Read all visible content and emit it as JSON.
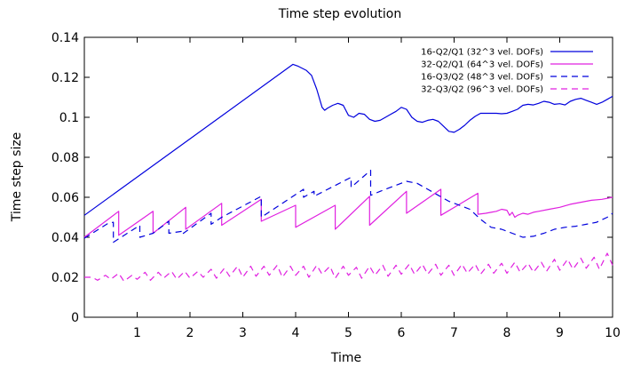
{
  "chart_data": {
    "type": "line",
    "title": "Time step evolution",
    "xlabel": "Time",
    "ylabel": "Time step size",
    "xlim": [
      0,
      10
    ],
    "ylim": [
      0,
      0.14
    ],
    "xticks": [
      1,
      2,
      3,
      4,
      5,
      6,
      7,
      8,
      9,
      10
    ],
    "xtick_labels": [
      "1",
      "2",
      "3",
      "4",
      "5",
      "6",
      "7",
      "8",
      "9",
      "10"
    ],
    "yticks": [
      0,
      0.02,
      0.04,
      0.06,
      0.08,
      0.1,
      0.12,
      0.14
    ],
    "ytick_labels": [
      "0",
      "0.02",
      "0.04",
      "0.06",
      "0.08",
      "0.1",
      "0.12",
      "0.14"
    ],
    "grid": false,
    "legend_position": "top-right",
    "series": [
      {
        "name": "16-Q2/Q1 (32^3 vel. DOFs)",
        "color": "#0000dd",
        "dash": "solid",
        "x": [
          0,
          3.95,
          4.05,
          4.2,
          4.3,
          4.4,
          4.5,
          4.55,
          4.6,
          4.7,
          4.8,
          4.9,
          5.0,
          5.1,
          5.2,
          5.3,
          5.4,
          5.5,
          5.6,
          5.7,
          5.8,
          5.9,
          6.0,
          6.1,
          6.2,
          6.3,
          6.4,
          6.5,
          6.6,
          6.7,
          6.8,
          6.9,
          7.0,
          7.1,
          7.2,
          7.3,
          7.4,
          7.5,
          7.6,
          7.7,
          7.8,
          7.9,
          8.0,
          8.1,
          8.2,
          8.3,
          8.4,
          8.5,
          8.6,
          8.7,
          8.8,
          8.9,
          9.0,
          9.1,
          9.2,
          9.3,
          9.4,
          9.5,
          9.6,
          9.7,
          9.8,
          9.9,
          10.0
        ],
        "y": [
          0.051,
          0.1265,
          0.1255,
          0.1235,
          0.121,
          0.114,
          0.105,
          0.1035,
          0.1045,
          0.106,
          0.107,
          0.106,
          0.101,
          0.1,
          0.102,
          0.1015,
          0.099,
          0.098,
          0.0985,
          0.1,
          0.1015,
          0.103,
          0.105,
          0.104,
          0.1,
          0.098,
          0.0975,
          0.0985,
          0.099,
          0.098,
          0.0955,
          0.093,
          0.0925,
          0.094,
          0.096,
          0.0985,
          0.1005,
          0.102,
          0.102,
          0.102,
          0.102,
          0.1018,
          0.102,
          0.103,
          0.104,
          0.106,
          0.1065,
          0.1062,
          0.107,
          0.108,
          0.1075,
          0.1065,
          0.1068,
          0.1062,
          0.108,
          0.109,
          0.1095,
          0.1085,
          0.1075,
          0.1065,
          0.1075,
          0.109,
          0.1105
        ]
      },
      {
        "name": "32-Q2/Q1 (64^3 vel. DOFs)",
        "color": "#e020e0",
        "dash": "solid",
        "x": [
          0,
          0.65,
          0.65,
          1.3,
          1.3,
          1.92,
          1.92,
          2.6,
          2.6,
          3.35,
          3.35,
          4.0,
          4.0,
          4.75,
          4.75,
          5.4,
          5.4,
          6.1,
          6.1,
          6.75,
          6.75,
          7.45,
          7.45,
          7.6,
          7.7,
          7.8,
          7.9,
          8.0,
          8.05,
          8.1,
          8.15,
          8.2,
          8.3,
          8.4,
          8.5,
          8.6,
          8.8,
          9.0,
          9.2,
          9.4,
          9.6,
          9.8,
          10.0
        ],
        "y": [
          0.04,
          0.053,
          0.041,
          0.053,
          0.042,
          0.055,
          0.044,
          0.057,
          0.046,
          0.059,
          0.048,
          0.056,
          0.045,
          0.056,
          0.044,
          0.0605,
          0.046,
          0.063,
          0.052,
          0.064,
          0.051,
          0.062,
          0.0515,
          0.052,
          0.0525,
          0.053,
          0.054,
          0.0535,
          0.051,
          0.0525,
          0.05,
          0.051,
          0.052,
          0.0515,
          0.0525,
          0.053,
          0.054,
          0.055,
          0.0565,
          0.0575,
          0.0585,
          0.059,
          0.06
        ]
      },
      {
        "name": "16-Q3/Q2 (48^3 vel. DOFs)",
        "color": "#0000dd",
        "dash": "dashed",
        "x": [
          0,
          0.45,
          0.55,
          0.55,
          1.05,
          1.05,
          1.3,
          1.6,
          1.6,
          1.85,
          1.85,
          2.4,
          2.4,
          2.6,
          3.35,
          3.35,
          4.15,
          4.15,
          4.35,
          4.35,
          5.05,
          5.05,
          5.42,
          5.42,
          5.6,
          5.9,
          6.1,
          6.3,
          6.5,
          6.7,
          6.9,
          7.1,
          7.3,
          7.5,
          7.6,
          7.7,
          7.9,
          8.1,
          8.3,
          8.5,
          8.7,
          8.9,
          9.1,
          9.3,
          9.5,
          9.7,
          9.9,
          10.0
        ],
        "y": [
          0.0395,
          0.047,
          0.0475,
          0.0375,
          0.046,
          0.04,
          0.042,
          0.048,
          0.042,
          0.043,
          0.0415,
          0.052,
          0.0465,
          0.05,
          0.0605,
          0.05,
          0.064,
          0.06,
          0.063,
          0.0605,
          0.07,
          0.065,
          0.0735,
          0.061,
          0.063,
          0.066,
          0.068,
          0.067,
          0.064,
          0.061,
          0.058,
          0.056,
          0.054,
          0.049,
          0.047,
          0.045,
          0.044,
          0.042,
          0.04,
          0.0405,
          0.042,
          0.044,
          0.045,
          0.0455,
          0.0465,
          0.0475,
          0.05,
          0.052
        ]
      },
      {
        "name": "32-Q3/Q2 (96^3 vel. DOFs)",
        "color": "#e020e0",
        "dash": "dashed",
        "x": [
          0,
          0.15,
          0.25,
          0.4,
          0.5,
          0.65,
          0.75,
          0.9,
          1.0,
          1.15,
          1.25,
          1.4,
          1.5,
          1.65,
          1.75,
          1.9,
          2.0,
          2.15,
          2.25,
          2.4,
          2.5,
          2.65,
          2.75,
          2.9,
          3.0,
          3.15,
          3.25,
          3.4,
          3.5,
          3.65,
          3.75,
          3.9,
          4.0,
          4.15,
          4.25,
          4.4,
          4.5,
          4.65,
          4.75,
          4.9,
          5.0,
          5.15,
          5.25,
          5.4,
          5.5,
          5.65,
          5.75,
          5.9,
          6.0,
          6.15,
          6.25,
          6.4,
          6.5,
          6.65,
          6.75,
          6.9,
          7.0,
          7.15,
          7.25,
          7.4,
          7.5,
          7.65,
          7.75,
          7.9,
          8.0,
          8.15,
          8.25,
          8.4,
          8.5,
          8.65,
          8.75,
          8.9,
          9.0,
          9.15,
          9.25,
          9.4,
          9.5,
          9.65,
          9.75,
          9.9,
          10.0
        ],
        "y": [
          0.02,
          0.02,
          0.0185,
          0.021,
          0.019,
          0.022,
          0.018,
          0.021,
          0.019,
          0.0225,
          0.0185,
          0.0225,
          0.0195,
          0.023,
          0.019,
          0.023,
          0.0195,
          0.023,
          0.02,
          0.024,
          0.0195,
          0.0245,
          0.0205,
          0.0255,
          0.02,
          0.0255,
          0.0205,
          0.0255,
          0.021,
          0.026,
          0.02,
          0.0255,
          0.021,
          0.0255,
          0.02,
          0.026,
          0.0215,
          0.0255,
          0.0195,
          0.0255,
          0.021,
          0.025,
          0.0195,
          0.0255,
          0.021,
          0.026,
          0.0205,
          0.026,
          0.0215,
          0.0265,
          0.0215,
          0.0265,
          0.0215,
          0.0265,
          0.021,
          0.026,
          0.021,
          0.0265,
          0.022,
          0.0265,
          0.0215,
          0.0265,
          0.022,
          0.027,
          0.022,
          0.0275,
          0.0225,
          0.027,
          0.0225,
          0.0275,
          0.023,
          0.029,
          0.0235,
          0.029,
          0.024,
          0.0295,
          0.0245,
          0.03,
          0.024,
          0.032,
          0.026
        ]
      }
    ]
  }
}
